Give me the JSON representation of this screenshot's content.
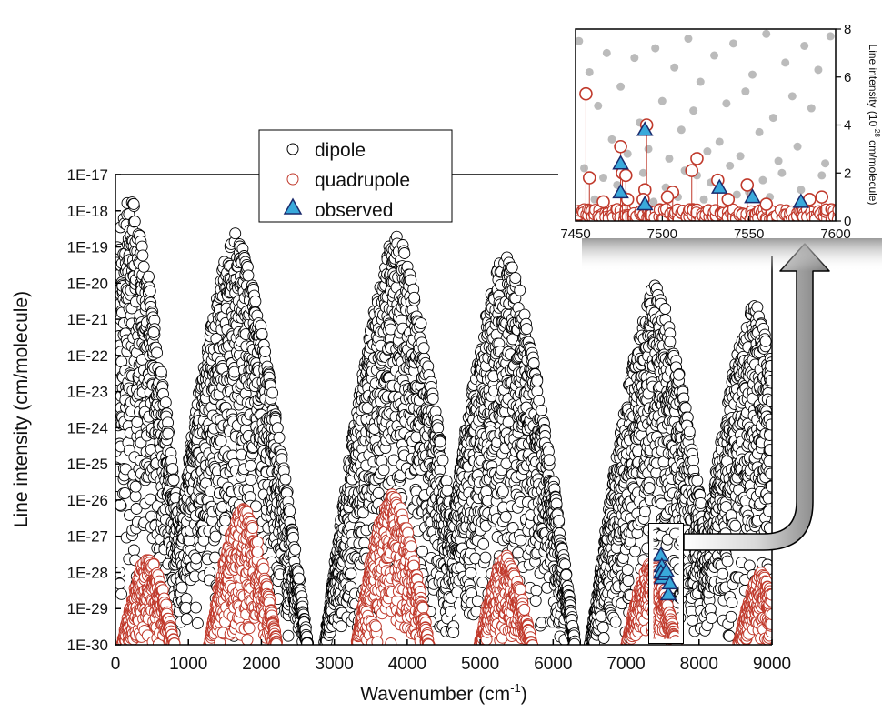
{
  "chart_data": [
    {
      "type": "scatter",
      "xlabel": "Wavenumber (cm",
      "xlabel_sup": "-1",
      "xlabel_end": ")",
      "ylabel": "Line intensity (cm/molecule)",
      "xlim": [
        0,
        9000
      ],
      "ylim_log10": [
        -30,
        -17
      ],
      "y_scale": "log",
      "grid": false,
      "x_ticks": [
        "0",
        "1000",
        "2000",
        "3000",
        "4000",
        "5000",
        "6000",
        "7000",
        "8000",
        "9000"
      ],
      "y_ticks": [
        "1E-17",
        "1E-18",
        "1E-19",
        "1E-20",
        "1E-21",
        "1E-22",
        "1E-23",
        "1E-24",
        "1E-25",
        "1E-26",
        "1E-27",
        "1E-28",
        "1E-29",
        "1E-30"
      ],
      "legend": {
        "placement": "top-center",
        "entries": [
          {
            "label": "dipole",
            "marker": "circle",
            "color": "#000000"
          },
          {
            "label": "quadrupole",
            "marker": "circle",
            "color": "#c0392b"
          },
          {
            "label": "observed",
            "marker": "triangle",
            "color": "#39a9db"
          }
        ]
      },
      "series": [
        {
          "name": "dipole",
          "marker": "open-circle",
          "color": "#000000",
          "band_envelope": {
            "centers": [
              200,
              1650,
              3850,
              5350,
              7400,
              8750
            ],
            "peak_intensity": [
              3e-18,
              3e-19,
              3e-19,
              1e-19,
              1e-20,
              3e-21
            ]
          }
        },
        {
          "name": "quadrupole",
          "marker": "open-circle",
          "color": "#c0392b",
          "band_envelope": {
            "centers": [
              450,
              1750,
              3800,
              5350,
              7350,
              8850
            ],
            "peak_intensity": [
              3e-28,
              6e-27,
              1.5e-26,
              3e-28,
              2e-28,
              1e-28
            ]
          }
        },
        {
          "name": "observed",
          "marker": "triangle",
          "color": "#39a9db",
          "x": [
            7476,
            7490,
            7478,
            7491,
            7534,
            7552,
            7580,
            7600
          ],
          "y": [
            3e-28,
            1.5e-28,
            1e-28,
            7e-29,
            9e-29,
            1.1e-28,
            2.5e-29,
            5e-29
          ]
        }
      ]
    },
    {
      "type": "scatter",
      "xlabel": "",
      "ylabel": "Line intensity (10",
      "ylabel_sup": "-28",
      "ylabel_end": " cm/molecule)",
      "xlim": [
        7450,
        7600
      ],
      "ylim": [
        0,
        8
      ],
      "x_ticks": [
        "7450",
        "7500",
        "7550",
        "7600"
      ],
      "y_ticks": [
        "0",
        "2",
        "4",
        "6",
        "8"
      ],
      "series": [
        {
          "name": "dipole",
          "marker": "filled-circle",
          "color": "#bbbbbb",
          "x": [
            7452,
            7458,
            7463,
            7468,
            7471,
            7476,
            7480,
            7484,
            7487,
            7492,
            7496,
            7500,
            7504,
            7507,
            7511,
            7515,
            7518,
            7522,
            7526,
            7530,
            7533,
            7537,
            7541,
            7545,
            7548,
            7552,
            7556,
            7560,
            7564,
            7567,
            7571,
            7575,
            7578,
            7582,
            7586,
            7590,
            7594,
            7597,
            7455,
            7466,
            7474,
            7489,
            7502,
            7513,
            7520,
            7528,
            7539,
            7550,
            7558,
            7569,
            7580,
            7592,
            7461,
            7478,
            7495,
            7509,
            7524,
            7543,
            7562,
            7584
          ],
          "y": [
            7.5,
            6.2,
            4.8,
            7.0,
            3.4,
            5.6,
            2.8,
            6.8,
            4.1,
            3.0,
            7.2,
            5.0,
            2.6,
            6.4,
            3.8,
            7.6,
            4.6,
            5.8,
            2.9,
            6.9,
            3.3,
            4.9,
            7.4,
            2.7,
            5.4,
            6.1,
            3.7,
            7.8,
            4.3,
            2.5,
            6.6,
            5.2,
            3.1,
            7.3,
            4.7,
            6.3,
            2.4,
            7.7,
            2.2,
            1.8,
            1.5,
            2.0,
            1.4,
            2.1,
            1.9,
            1.6,
            2.3,
            1.2,
            1.7,
            2.0,
            1.3,
            1.9,
            0.9,
            1.1,
            0.8,
            1.0,
            0.9,
            1.1,
            1.0,
            0.8
          ]
        },
        {
          "name": "quadrupole",
          "marker": "open-circle",
          "color": "#c0392b",
          "x": [
            7456,
            7458,
            7476,
            7477,
            7479,
            7491,
            7490,
            7489,
            7517,
            7520,
            7506,
            7532,
            7549,
            7585,
            7592,
            7480,
            7466,
            7503,
            7538,
            7560
          ],
          "y": [
            5.3,
            1.8,
            3.1,
            2.0,
            1.9,
            4.0,
            1.3,
            0.9,
            2.1,
            2.6,
            1.2,
            1.7,
            1.5,
            0.9,
            1.0,
            0.9,
            0.8,
            1.0,
            0.9,
            0.7
          ]
        },
        {
          "name": "observed",
          "marker": "triangle",
          "color": "#39a9db",
          "x": [
            7476,
            7490,
            7476,
            7490,
            7533,
            7552,
            7580
          ],
          "y": [
            2.4,
            3.8,
            1.2,
            0.7,
            1.4,
            1.0,
            0.8
          ]
        }
      ]
    }
  ]
}
